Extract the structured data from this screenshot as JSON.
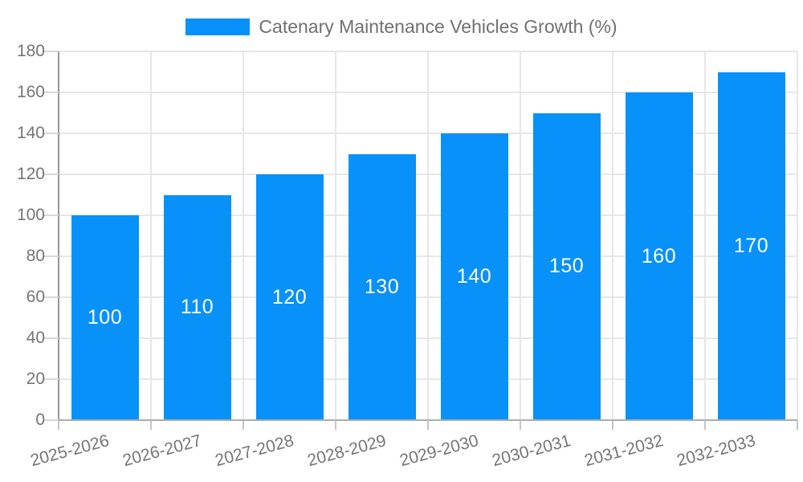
{
  "chart_data": {
    "type": "bar",
    "title": "",
    "legend": "Catenary Maintenance Vehicles Growth (%)",
    "legend_position": "top-center",
    "categories": [
      "2025-2026",
      "2026-2027",
      "2027-2028",
      "2028-2029",
      "2029-2030",
      "2030-2031",
      "2031-2032",
      "2032-2033"
    ],
    "values": [
      100,
      110,
      120,
      130,
      140,
      150,
      160,
      170
    ],
    "value_labels": [
      "100",
      "110",
      "120",
      "130",
      "140",
      "150",
      "160",
      "170"
    ],
    "xlabel": "",
    "ylabel": "",
    "ylim": [
      0,
      180
    ],
    "yticks": [
      0,
      20,
      40,
      60,
      80,
      100,
      120,
      140,
      160,
      180
    ],
    "grid": true,
    "colors": {
      "bar": "#0991FA",
      "value_label": "#FFFFFF",
      "grid_line": "#E7E7E7",
      "y_axis_line": "#969696",
      "x_axis_line": "#ACACAC",
      "y_tick_mark": "#D8D8D8",
      "x_tick_mark": "#C4C4C4",
      "tick_text": "#757575",
      "legend_text": "#707070"
    }
  }
}
